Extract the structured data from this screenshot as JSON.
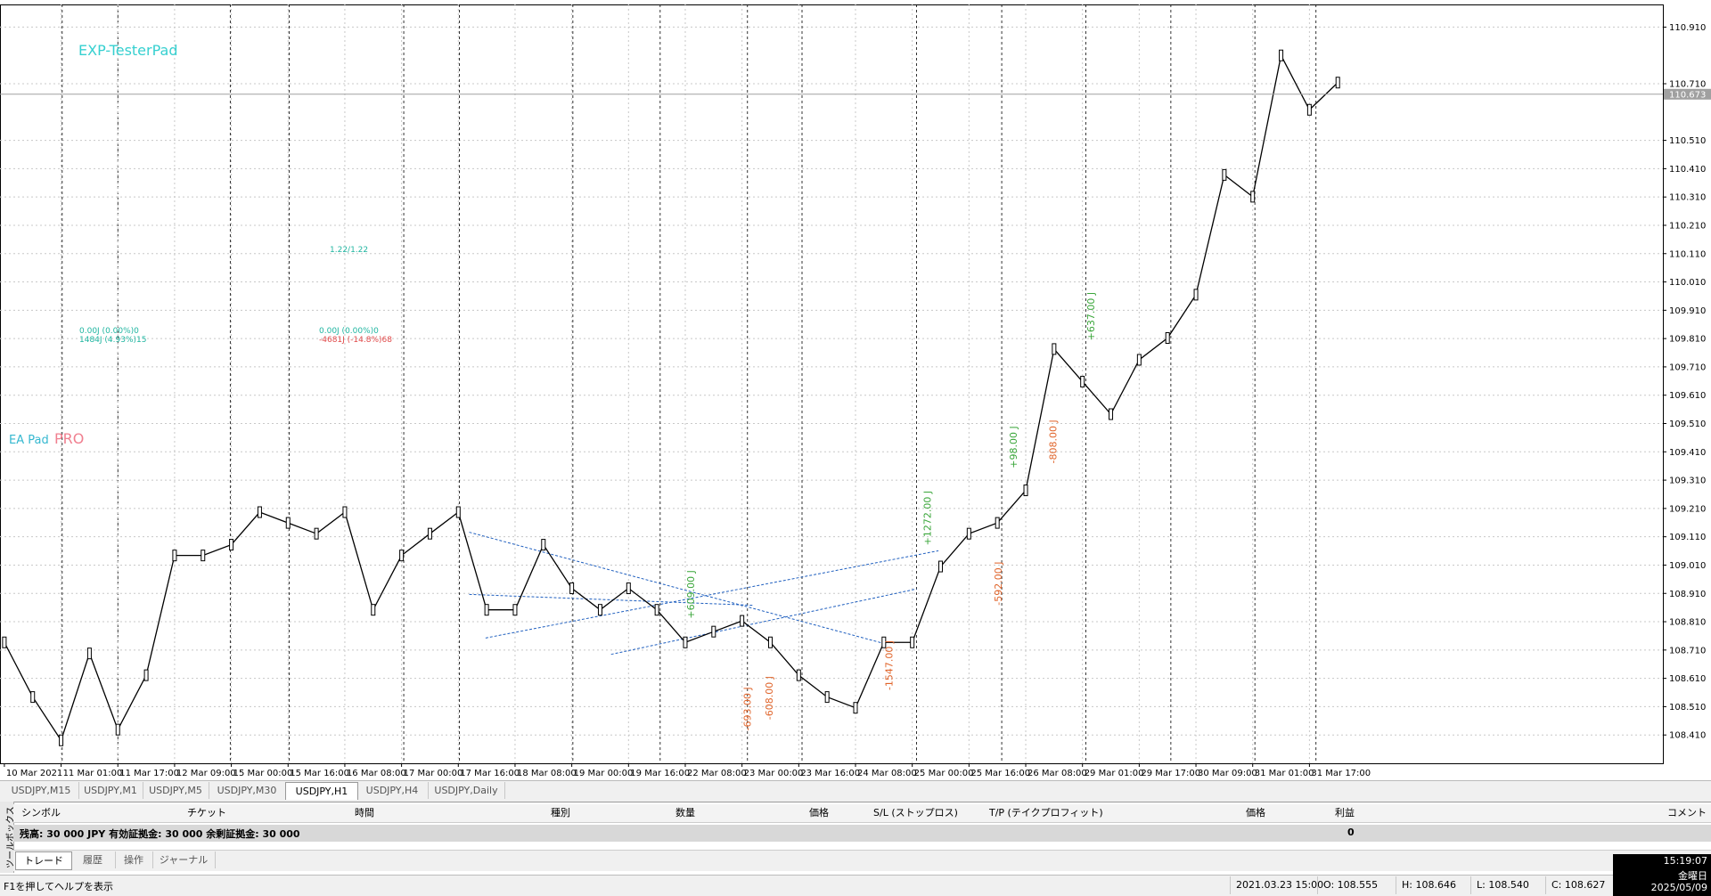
{
  "chart_data": {
    "type": "line",
    "color": "#000000",
    "grid": true,
    "categories": [
      "10 Mar 2021",
      null,
      "11 Mar 01:00",
      null,
      "11 Mar 17:00",
      null,
      "12 Mar 09:00",
      null,
      "15 Mar 00:00",
      null,
      "15 Mar 16:00",
      null,
      "16 Mar 08:00",
      null,
      "17 Mar 00:00",
      null,
      "17 Mar 16:00",
      null,
      "18 Mar 08:00",
      null,
      "19 Mar 00:00",
      null,
      "19 Mar 16:00",
      null,
      "22 Mar 08:00",
      null,
      "23 Mar 00:00",
      null,
      "23 Mar 16:00",
      null,
      "24 Mar 08:00",
      null,
      "25 Mar 00:00",
      null,
      "25 Mar 16:00",
      null,
      "26 Mar 08:00",
      null,
      "29 Mar 01:00",
      null,
      "29 Mar 17:00",
      null,
      "30 Mar 09:00",
      null,
      "31 Mar 01:00",
      null,
      "31 Mar 17:00",
      null
    ],
    "values": [
      108.737,
      108.544,
      108.391,
      108.698,
      108.429,
      108.621,
      109.044,
      109.044,
      109.082,
      109.197,
      109.159,
      109.121,
      109.197,
      108.852,
      109.044,
      109.121,
      109.197,
      108.852,
      108.852,
      109.082,
      108.928,
      108.852,
      108.928,
      108.852,
      108.737,
      108.775,
      108.813,
      108.737,
      108.621,
      108.544,
      108.506,
      108.737,
      108.737,
      109.005,
      109.121,
      109.159,
      109.274,
      109.773,
      109.658,
      109.543,
      109.735,
      109.812,
      109.965,
      110.388,
      110.311,
      110.81,
      110.618,
      110.714
    ],
    "ylim": [
      108.31,
      110.99
    ],
    "yticks": [
      {
        "value": 110.91,
        "label": "110.910"
      },
      {
        "value": 110.71,
        "label": "110.710"
      },
      {
        "value": 110.51,
        "label": "110.510"
      },
      {
        "value": 110.41,
        "label": "110.410"
      },
      {
        "value": 110.31,
        "label": "110.310"
      },
      {
        "value": 110.21,
        "label": "110.210"
      },
      {
        "value": 110.11,
        "label": "110.110"
      },
      {
        "value": 110.01,
        "label": "110.010"
      },
      {
        "value": 109.91,
        "label": "109.910"
      },
      {
        "value": 109.81,
        "label": "109.810"
      },
      {
        "value": 109.71,
        "label": "109.710"
      },
      {
        "value": 109.61,
        "label": "109.610"
      },
      {
        "value": 109.51,
        "label": "109.510"
      },
      {
        "value": 109.41,
        "label": "109.410"
      },
      {
        "value": 109.31,
        "label": "109.310"
      },
      {
        "value": 109.21,
        "label": "109.210"
      },
      {
        "value": 109.11,
        "label": "109.110"
      },
      {
        "value": 109.01,
        "label": "109.010"
      },
      {
        "value": 108.91,
        "label": "108.910"
      },
      {
        "value": 108.81,
        "label": "108.810"
      },
      {
        "value": 108.71,
        "label": "108.710"
      },
      {
        "value": 108.61,
        "label": "108.610"
      },
      {
        "value": 108.51,
        "label": "108.510"
      },
      {
        "value": 108.41,
        "label": "108.410"
      }
    ],
    "current_price": {
      "value": 110.673,
      "label": "110.673"
    },
    "overlay": {
      "title": "EXP-TesterPad",
      "ratio": "1.22/1.22",
      "buy_stats": [
        "0.00J (0.00%)0",
        "1484J (4.93%)15"
      ],
      "sell_stats": [
        "0.00J (0.00%)0",
        "-4681J (-14.8%)68"
      ],
      "brand": [
        "EA Pad",
        "PRO"
      ]
    },
    "trade_labels": [
      {
        "text": "+609.00 J",
        "color": "#3aa63a"
      },
      {
        "text": "-693.00 J",
        "color": "#e0642a"
      },
      {
        "text": "-608.00 J",
        "color": "#e0642a"
      },
      {
        "text": "-1547.00 J",
        "color": "#e0642a"
      },
      {
        "text": "+1272.00 J",
        "color": "#3aa63a"
      },
      {
        "text": "-592.00 J",
        "color": "#e0642a"
      },
      {
        "text": "+98.00 J",
        "color": "#3aa63a"
      },
      {
        "text": "-808.00 J",
        "color": "#e0642a"
      },
      {
        "text": "+637.00 J",
        "color": "#3aa63a"
      }
    ]
  },
  "tabs": [
    "USDJPY,M15",
    "USDJPY,M1",
    "USDJPY,M5",
    "USDJPY,M30",
    "USDJPY,H1",
    "USDJPY,H4",
    "USDJPY,Daily"
  ],
  "toolbox": {
    "side_title": "ツールボックス",
    "headers": [
      "シンボル",
      "チケット",
      "時間",
      "種別",
      "数量",
      "価格",
      "S/L (ストップロス)",
      "T/P (テイクプロフィット)",
      "価格",
      "利益",
      "コメント"
    ],
    "balance_row": {
      "text": "残高: 30 000 JPY  有効証拠金: 30 000  余剰証拠金: 30 000",
      "profit": "0"
    },
    "tabs": [
      "トレード",
      "履歴",
      "操作",
      "ジャーナル"
    ]
  },
  "status": {
    "help": "F1を押してヘルプを表示",
    "fields": [
      "2021.03.23 15:00",
      "O: 108.555",
      "H: 108.646",
      "L: 108.540",
      "C: 108.627"
    ]
  },
  "clock": {
    "time": "15:19:07",
    "day": "金曜日",
    "date": "2025/05/09"
  }
}
